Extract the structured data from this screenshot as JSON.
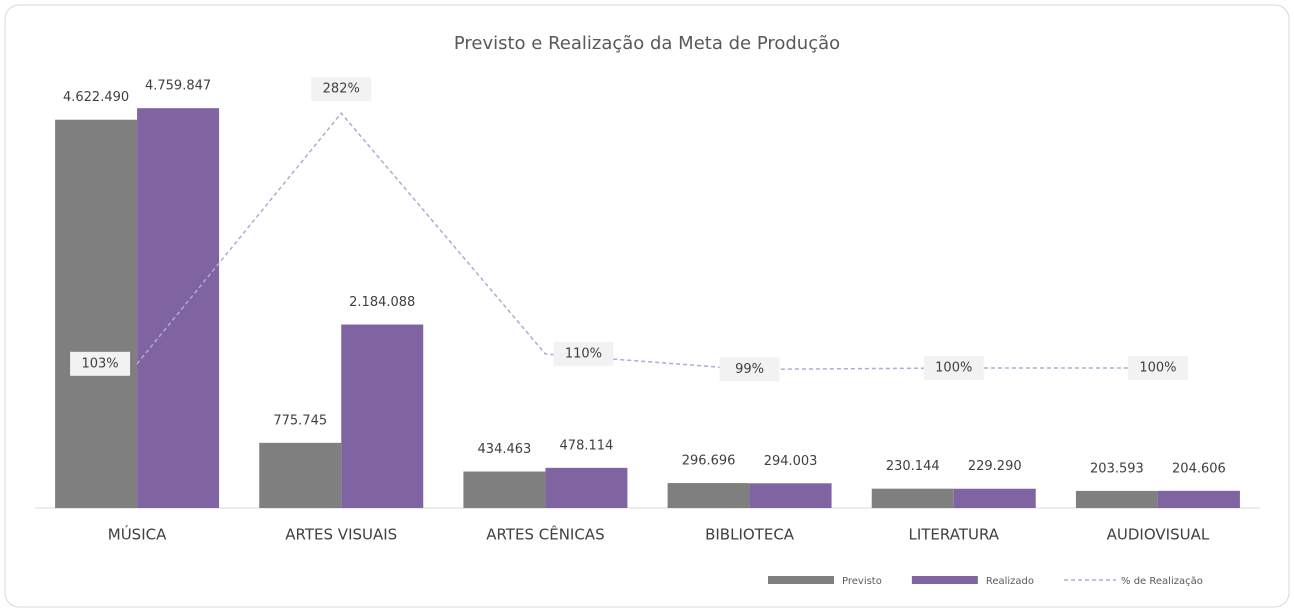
{
  "chart_data": {
    "type": "bar",
    "title": "Previsto e Realização da Meta de Produção",
    "categories": [
      "MÚSICA",
      "ARTES VISUAIS",
      "ARTES CÊNICAS",
      "BIBLIOTECA",
      "LITERATURA",
      "AUDIOVISUAL"
    ],
    "series": [
      {
        "name": "Previsto",
        "type": "bar",
        "color": "#7f7f7f",
        "values": [
          4622490,
          775745,
          434463,
          296696,
          230144,
          203593
        ],
        "value_labels": [
          "4.622.490",
          "775.745",
          "434.463",
          "296.696",
          "230.144",
          "203.593"
        ]
      },
      {
        "name": "Realizado",
        "type": "bar",
        "color": "#8064a2",
        "values": [
          4759847,
          2184088,
          478114,
          294003,
          229290,
          204606
        ],
        "value_labels": [
          "4.759.847",
          "2.184.088",
          "478.114",
          "294.003",
          "229.290",
          "204.606"
        ]
      },
      {
        "name": "% de Realização",
        "type": "line",
        "axis": "y2",
        "color": "#b4a7d6",
        "dashed": true,
        "values": [
          103,
          282,
          110,
          99,
          100,
          100
        ],
        "value_labels": [
          "103%",
          "282%",
          "110%",
          "99%",
          "100%",
          "100%"
        ]
      }
    ],
    "ylim": [
      0,
      5000000
    ],
    "y2lim": [
      0,
      300
    ],
    "legend": "bottom-right"
  }
}
